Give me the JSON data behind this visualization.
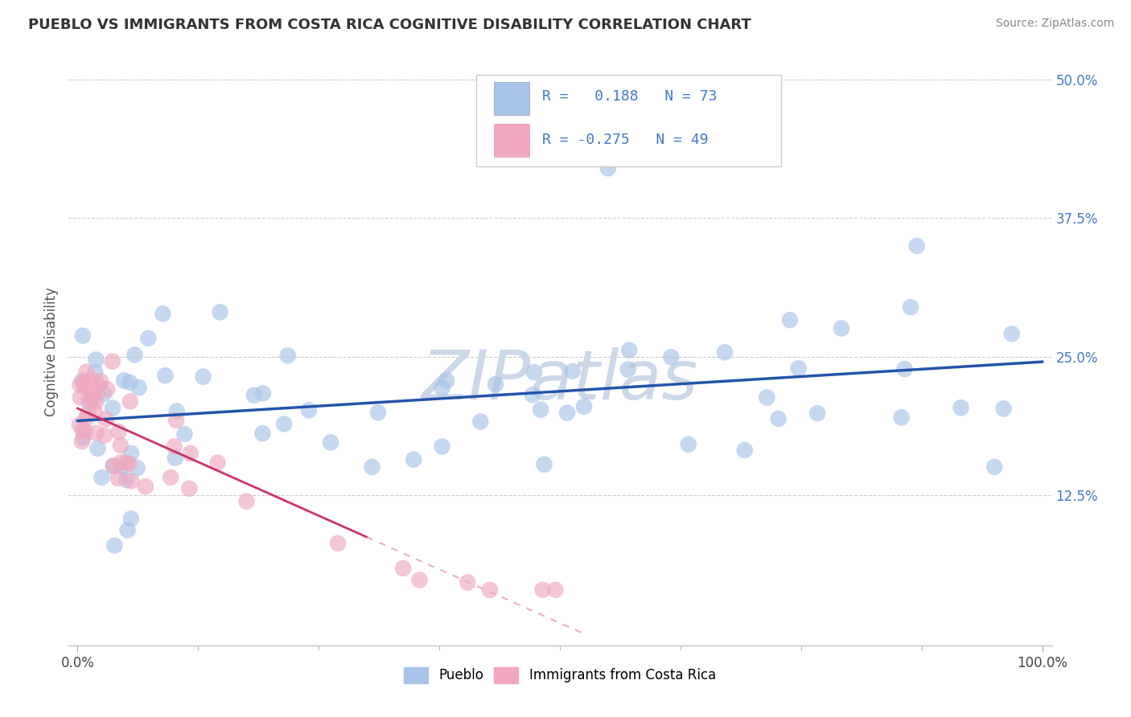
{
  "title": "PUEBLO VS IMMIGRANTS FROM COSTA RICA COGNITIVE DISABILITY CORRELATION CHART",
  "source": "Source: ZipAtlas.com",
  "ylabel": "Cognitive Disability",
  "xlim": [
    0,
    100
  ],
  "ylim": [
    0,
    50
  ],
  "background_color": "#ffffff",
  "grid_color": "#cccccc",
  "watermark": "ZIPatlas",
  "watermark_color": "#ccd8e8",
  "series1_color": "#a8c4e8",
  "series2_color": "#f0a8c0",
  "trendline1_color": "#2255aa",
  "trendline2_color": "#cc3366",
  "trendline2_dash_color": "#e8b0c8",
  "series1_label": "Pueblo",
  "series2_label": "Immigrants from Costa Rica",
  "legend_R1_val": "0.188",
  "legend_N1_val": "73",
  "legend_R2_val": "-0.275",
  "legend_N2_val": "49",
  "ytick_vals": [
    0,
    12.5,
    25.0,
    37.5,
    50.0
  ],
  "ytick_labels": [
    "",
    "12.5%",
    "25.0%",
    "37.5%",
    "50.0%"
  ],
  "blue_text_color": "#4477cc",
  "title_color": "#333333",
  "source_color": "#888888"
}
